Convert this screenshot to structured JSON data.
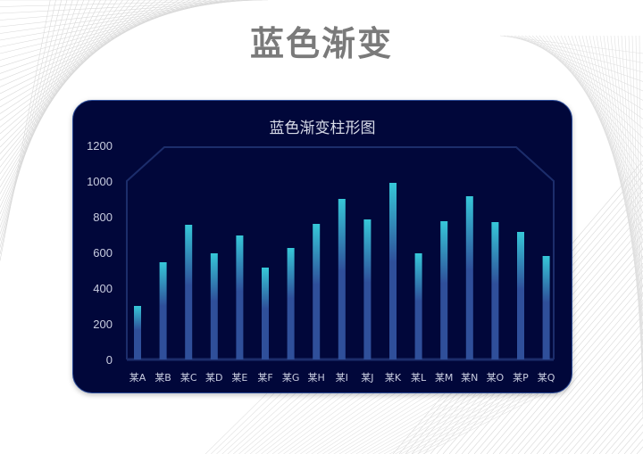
{
  "page": {
    "title": "蓝色渐变"
  },
  "chart_data": {
    "type": "bar",
    "title": "蓝色渐变柱形图",
    "xlabel": "",
    "ylabel": "",
    "categories": [
      "某A",
      "某B",
      "某C",
      "某D",
      "某E",
      "某F",
      "某G",
      "某H",
      "某I",
      "某J",
      "某K",
      "某L",
      "某M",
      "某N",
      "某O",
      "某P",
      "某Q"
    ],
    "values": [
      300,
      545,
      755,
      595,
      695,
      515,
      625,
      760,
      900,
      785,
      990,
      595,
      775,
      915,
      770,
      715,
      580
    ],
    "ylim": [
      0,
      1200
    ],
    "yticks": [
      0,
      200,
      400,
      600,
      800,
      1000,
      1200
    ],
    "grid": false,
    "legend": "none",
    "colors": {
      "bar_top": "#36c7d8",
      "bar_bottom": "#2f4f9a",
      "background": "#01073a",
      "frame": "#1c2d6b",
      "text": "#c9cde0"
    }
  }
}
